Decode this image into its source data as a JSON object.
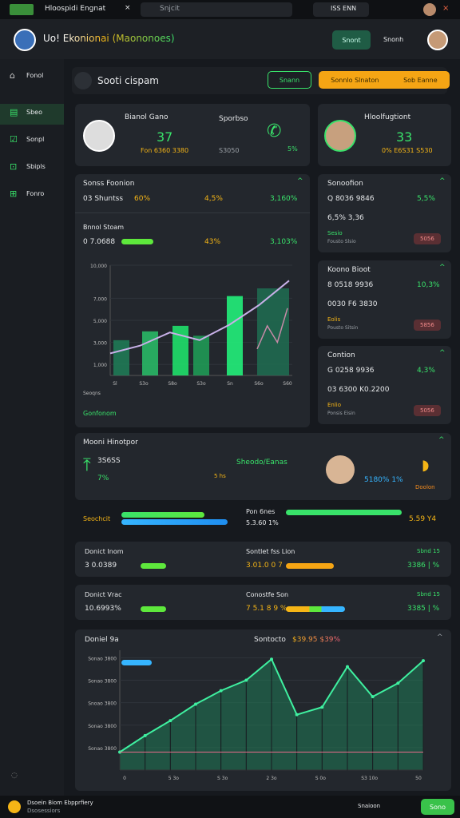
{
  "tab": {
    "title": "Hloospidi Engnat",
    "search": "Snjcit",
    "profile": "ISS ENN"
  },
  "header": {
    "title": "Uo! Ekonionai (Maononoes)",
    "button": "Snont",
    "link": "Snonh"
  },
  "sidebar": [
    "Fonol",
    "Sbeo",
    "Sonpl",
    "Sbipls",
    "Fonro"
  ],
  "toolbar": {
    "title": "Sooti cispam",
    "button1": "Snann",
    "button2": "Sonnlo Slnaton",
    "button3": "Sob Eanne"
  },
  "card1": {
    "name": "Bianol Gano",
    "value": "37",
    "sub": "Fon 6360 3380",
    "label": "Sporbso",
    "label_sub": "S3050",
    "pct": "5%"
  },
  "card2": {
    "name": "Hloolfugtiont",
    "value": "33",
    "sub": "0% E6S31 S530"
  },
  "panel": {
    "title": "Sonss Foonion",
    "row1": [
      "03 Shuntss",
      "60%",
      "4,5%",
      "3,160%"
    ],
    "title2": "Bnnol Stoam",
    "row2": [
      "0 7.0688",
      "43%",
      "3,103%"
    ],
    "footer": "Gonfonom",
    "chart": {
      "bars": [
        3200,
        4000,
        4500,
        3600,
        7200,
        7900
      ],
      "line": [
        2000,
        2700,
        3900,
        3200,
        4600,
        6400,
        8600
      ],
      "line2": [
        2400,
        4500,
        3000,
        6100
      ],
      "ylim": [
        0,
        10000
      ],
      "yticks": [
        {
          "value": 1000,
          "label": "1,000"
        },
        {
          "value": 3000,
          "label": "3,000"
        },
        {
          "value": 5000,
          "label": "5,000"
        },
        {
          "value": 7000,
          "label": "7,000"
        },
        {
          "value": 10000,
          "label": "10,000"
        }
      ],
      "xlabels": [
        "Sl",
        "S3o",
        "S8o",
        "S3o",
        "Sn",
        "S6o",
        "S60"
      ],
      "xtitle": "Seoqns"
    }
  },
  "side_panels": [
    {
      "title": "Sonoofion",
      "line1": "Q 8036 9846",
      "pct": "5,5%",
      "line2": "6,5% 3,36",
      "tag": "Sesio",
      "sub": "Fousto Slsio",
      "badge": "5056"
    },
    {
      "title": "Koono Bioot",
      "line1": "8 0518 9936",
      "pct": "10,3%",
      "line2": "0030 F6 3830",
      "tag": "Eolis",
      "sub": "Pousto Sitsin",
      "badge": "5856"
    },
    {
      "title": "Contion",
      "line1": "G 0258 9936",
      "pct": "4,3%",
      "line2": "03 6300 K0.2200",
      "tag": "Enlio",
      "sub": "Ponsis Eisin",
      "badge": "5056"
    }
  ],
  "monitor": {
    "title": "Mooni Hinotpor",
    "value": "3S6SS",
    "pct": "7%",
    "status": "Sheodo/Eanas",
    "hours": "5 hs",
    "rate": "5180% 1%",
    "label": "Doolon"
  },
  "progress": {
    "label": "Seochcit",
    "right_label": "Pon 6nes",
    "right_value": "5.3.60 1%",
    "end": "5.59 Y4",
    "bars": [
      78,
      100
    ],
    "right_bar": 85
  },
  "rows": [
    {
      "title": "Donict Inom",
      "value": "3 0.0389",
      "mid_title": "Sontlet fss Lion",
      "mid_value": "3.01.0 0 7",
      "right_title": "Sbnd 15",
      "right_value": "3386 | %"
    },
    {
      "title": "Donict Vrac",
      "value": "10.6993%",
      "mid_title": "Conostfe Son",
      "mid_value": "7 5.1 8 9 %",
      "right_title": "Sbnd 15",
      "right_value": "3385 | %"
    }
  ],
  "bottom": {
    "title": "Doniel 9a",
    "subtitle": "Sontocto",
    "highlight": "$39.95 $39%",
    "chart": {
      "line": [
        1.2,
        2.3,
        3.3,
        4.4,
        5.3,
        6.0,
        7.4,
        3.7,
        4.2,
        6.9,
        4.9,
        5.8,
        7.3
      ],
      "flat": [
        1.2,
        1.2,
        1.2,
        1.2,
        1.2,
        1.2,
        1.2,
        1.2,
        1.2,
        1.2,
        1.2,
        1.2,
        1.2
      ],
      "ylim": [
        0,
        8
      ],
      "yticks": [
        {
          "value": 1.5,
          "label": "Sonao 3800"
        },
        {
          "value": 3,
          "label": "Sonao 3800"
        },
        {
          "value": 4.5,
          "label": "Snoao 3800"
        },
        {
          "value": 6,
          "label": "Sonao 3800"
        },
        {
          "value": 7.5,
          "label": "Sonao 3800"
        }
      ],
      "xlabels": [
        "0",
        "5 3o",
        "S 3o",
        "2 3o",
        "S 0o",
        "S3 10o",
        "50"
      ]
    }
  },
  "footer": {
    "name": "Dsoein Biom Ebpprfiery",
    "sub": "Dsosessiors",
    "action": "Snaioon",
    "button": "Sono"
  }
}
